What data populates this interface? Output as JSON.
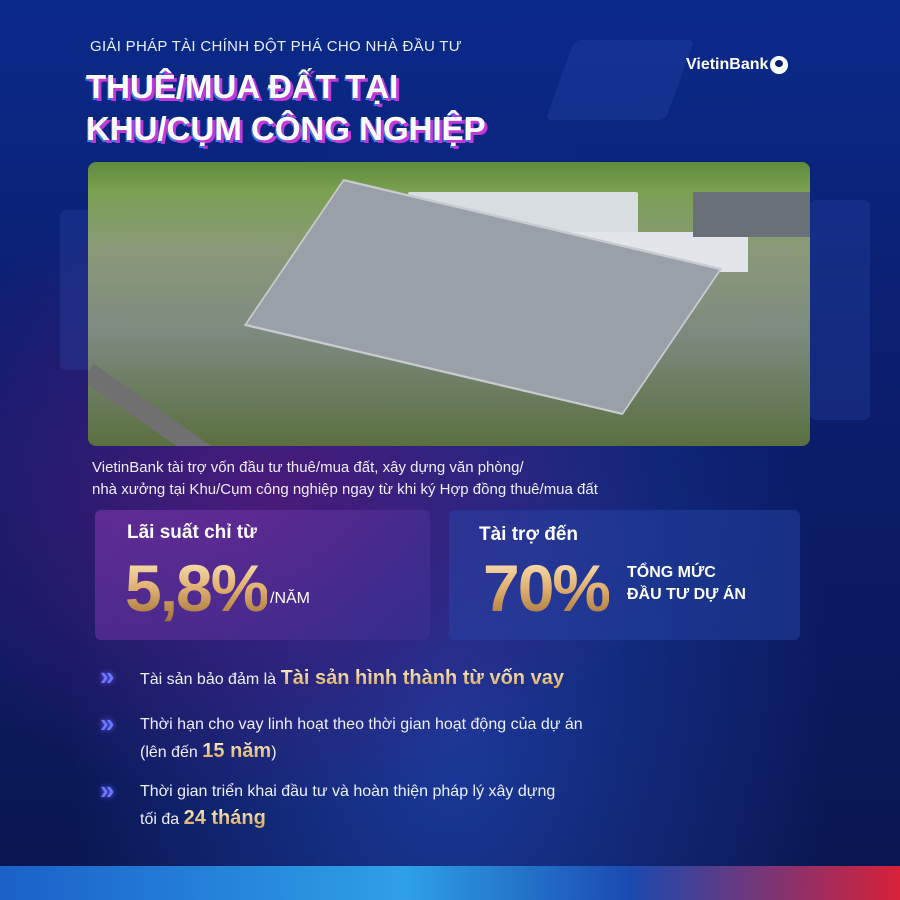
{
  "header": {
    "subtitle": "GIẢI PHÁP TÀI CHÍNH ĐỘT PHÁ CHO NHÀ ĐẦU TƯ",
    "title_line1": "THUÊ/MUA ĐẤT TẠI",
    "title_line2": "KHU/CỤM CÔNG NGHIỆP",
    "logo": "VietinBank"
  },
  "description": {
    "line1": "VietinBank tài trợ vốn đầu tư thuê/mua đất, xây dựng văn phòng/",
    "line2": "nhà xưởng tại Khu/Cụm công nghiệp ngay từ khi ký Hợp đồng thuê/mua đất"
  },
  "cards": [
    {
      "label": "Lãi suất chỉ từ",
      "value": "5,8%",
      "unit": "/NĂM"
    },
    {
      "label": "Tài trợ đến",
      "value": "70%",
      "unit_line1": "TỔNG MỨC",
      "unit_line2": "ĐẦU TƯ DỰ ÁN"
    }
  ],
  "bullets": [
    {
      "text": "Tài sản bảo đảm là ",
      "highlight": "Tài sản hình thành từ vốn vay"
    },
    {
      "text": "Thời hạn cho vay linh hoạt theo thời gian hoạt động của dự án",
      "text2": "(lên đến ",
      "highlight": "15 năm",
      "suffix": ")"
    },
    {
      "text": "Thời gian triển khai đầu tư và hoàn thiện pháp lý xây dựng",
      "text2": "tối đa ",
      "highlight": "24 tháng"
    }
  ],
  "colors": {
    "background": "#0b1e6e",
    "gold": "#e0b070",
    "accent_magenta": "#c03ad8",
    "chevron": "#6a7aff"
  }
}
